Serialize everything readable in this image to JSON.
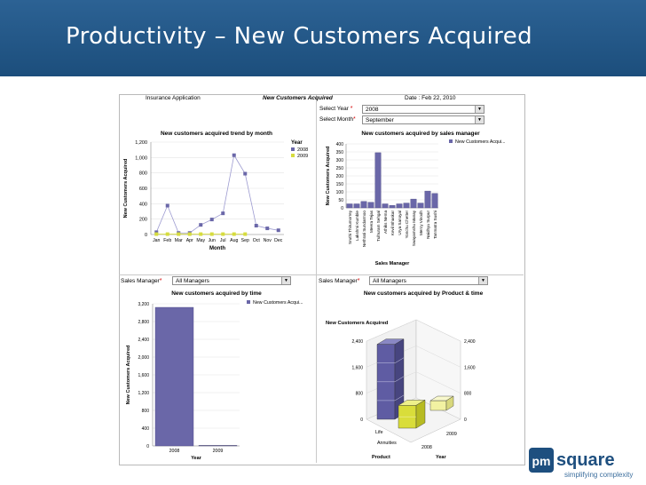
{
  "slide_title": "Productivity – New Customers Acquired",
  "dashboard": {
    "app_name": "Insurance Application",
    "page_title": "New Customers Acquired",
    "date_text": "Date : Feb 22, 2010",
    "filters": {
      "select_year_label": "Select Year",
      "select_year_value": "2008",
      "select_month_label": "Select Month",
      "select_month_value": "September",
      "sales_manager_label": "Sales Manager",
      "sales_manager_value": "All Managers",
      "required_mark": "*"
    }
  },
  "colors": {
    "series_2008": "#6a67a8",
    "series_2009": "#d6dc3e",
    "header": "#1c4e7c"
  },
  "logo": {
    "brand": "pmsquare",
    "tagline": "simplifying complexity"
  },
  "chart_data": [
    {
      "type": "line",
      "title": "New customers acquired trend by month",
      "xlabel": "Month",
      "ylabel": "New Customers Acquired",
      "legend_title": "Year",
      "categories": [
        "Jan",
        "Feb",
        "Mar",
        "Apr",
        "May",
        "Jun",
        "Jul",
        "Aug",
        "Sep",
        "Oct",
        "Nov",
        "Dec"
      ],
      "series": [
        {
          "name": "2008",
          "values": [
            30,
            375,
            20,
            20,
            125,
            195,
            275,
            1030,
            790,
            115,
            80,
            55
          ]
        },
        {
          "name": "2009",
          "values": [
            5,
            5,
            5,
            5,
            5,
            5,
            5,
            5,
            5,
            null,
            null,
            null
          ]
        }
      ],
      "yticks": [
        "0",
        "200",
        "400",
        "600",
        "800",
        "1,000",
        "1,200"
      ],
      "ylim": [
        0,
        1200
      ]
    },
    {
      "type": "bar",
      "title": "New customers acquired by sales manager",
      "xlabel": "Sales Manager",
      "ylabel": "New Customers Acquired",
      "legend": "New Customers Acqui...",
      "categories": [
        "Sruthi Thirumorrey",
        "Lakshmi Kumble",
        "Nethrati Sundarmoo",
        "Meera Tejas",
        "Tulhuram Sehgal",
        "Athiks Nema",
        "Kevil Bhaskar",
        "Urya Sanoyal",
        "Yonchu Chetter",
        "Swayamshu Manay",
        "Mercy Vinodh",
        "Naidhyu Surpur",
        "Tanmatra Sushi"
      ],
      "values": [
        25,
        25,
        40,
        35,
        345,
        25,
        15,
        25,
        30,
        55,
        30,
        105,
        90
      ],
      "yticks": [
        "0",
        "50",
        "100",
        "150",
        "200",
        "250",
        "300",
        "350",
        "400"
      ],
      "ylim": [
        0,
        400
      ]
    },
    {
      "type": "bar",
      "title": "New customers acquired by time",
      "xlabel": "Year",
      "ylabel": "New Customers Acquired",
      "legend": "New Customers Acqui...",
      "categories": [
        "2008",
        "2009"
      ],
      "values": [
        3120,
        10
      ],
      "yticks": [
        "0",
        "400",
        "800",
        "1,200",
        "1,600",
        "2,000",
        "2,400",
        "2,800",
        "3,200"
      ],
      "ylim": [
        0,
        3200
      ]
    },
    {
      "type": "bar",
      "title": "New customers acquired by Product & time",
      "ylabel": "New Customers Acquired",
      "xlabel": "Product",
      "zlabel": "Year",
      "products": [
        "Life",
        "Annuities"
      ],
      "years": [
        "2008",
        "2009"
      ],
      "series": [
        {
          "name": "Life 2008",
          "value": 2300
        },
        {
          "name": "Annuities 2008",
          "value": 700
        },
        {
          "name": "Annuities 2009",
          "value": 300
        }
      ],
      "yticks": [
        "0",
        "800",
        "1,600",
        "2,400"
      ],
      "ylim": [
        0,
        2400
      ]
    }
  ]
}
